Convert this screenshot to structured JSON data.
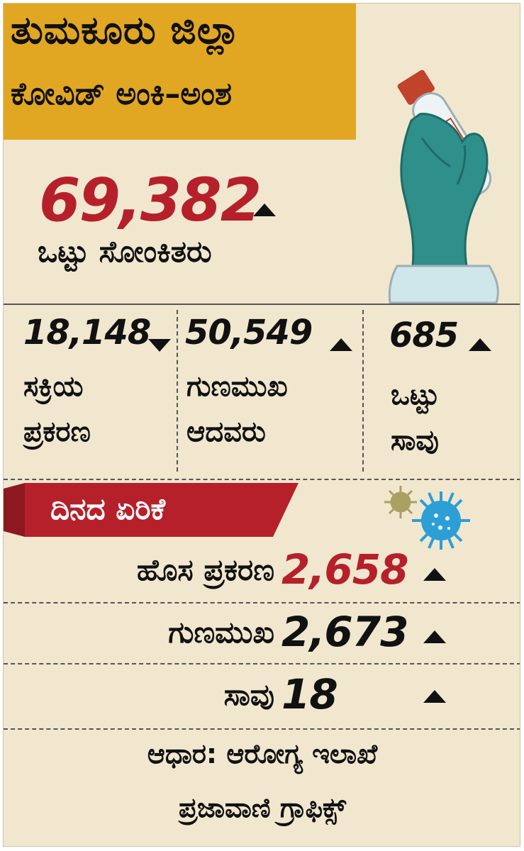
{
  "header": {
    "title": "ತುಮಕೂರು ಜಿಲ್ಲಾ",
    "subtitle": "ಕೋವಿಡ್ ಅಂಕಿ–ಅಂಶ"
  },
  "total": {
    "value": "69,382",
    "label": "ಒಟ್ಟು ಸೋಂಕಿತರು",
    "trend": "up"
  },
  "stats": [
    {
      "value": "18,148",
      "label_line1": "ಸಕ್ರಿಯ",
      "label_line2": "ಪ್ರಕರಣ",
      "trend": "down"
    },
    {
      "value": "50,549",
      "label_line1": "ಗುಣಮುಖ",
      "label_line2": "ಆದವರು",
      "trend": "up"
    },
    {
      "value": "685",
      "label_line1": "ಒಟ್ಟು",
      "label_line2": "ಸಾವು",
      "trend": "up"
    }
  ],
  "daily": {
    "title": "ದಿನದ ಏರಿಕೆ",
    "rows": [
      {
        "label": "ಹೊಸ ಪ್ರಕರಣ",
        "value": "2,658",
        "trend": "up"
      },
      {
        "label": "ಗುಣಮುಖ",
        "value": "2,673",
        "trend": "up"
      },
      {
        "label": "ಸಾವು",
        "value": "18",
        "trend": "up"
      }
    ]
  },
  "footer": {
    "source": "ಆಧಾರ: ಆರೋಗ್ಯ ಇಲಾಖೆ",
    "credit": "ಪ್ರಜಾವಾಣಿ ಗ್ರಾಫಿಕ್ಸ್"
  },
  "colors": {
    "background": "#f1e7cf",
    "header": "#e1a723",
    "accent_red": "#b5202b",
    "glove": "#2f8f8a",
    "virus_blue": "#2b9fd6",
    "virus_olive": "#a9a062"
  }
}
